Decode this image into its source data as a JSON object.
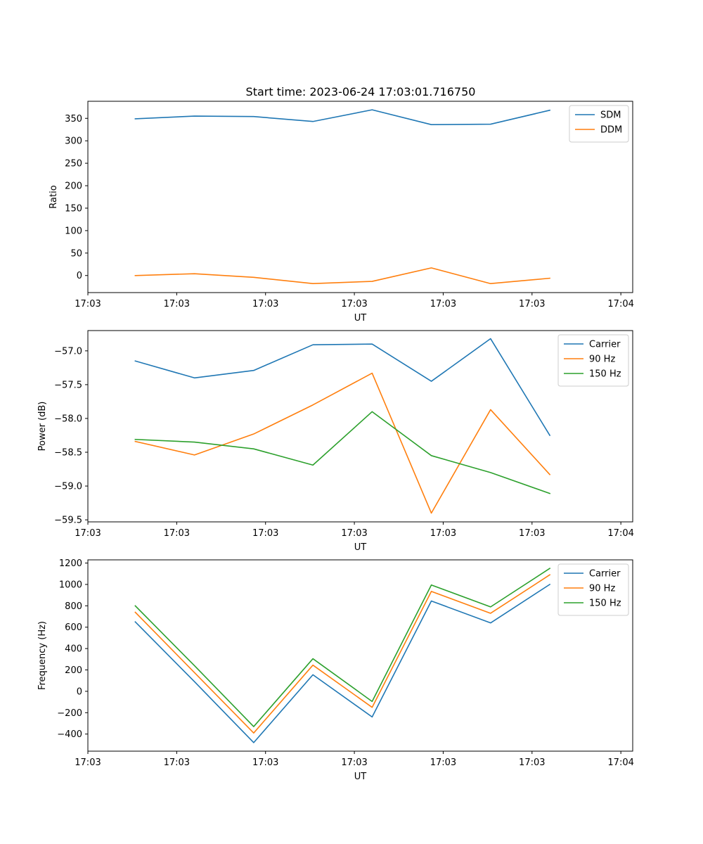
{
  "figure": {
    "title": "Start time: 2023-06-24 17:03:01.716750"
  },
  "chart_data": [
    {
      "type": "line",
      "title": "Start time: 2023-06-24 17:03:01.716750",
      "xlabel": "UT",
      "ylabel": "Ratio",
      "x": [
        1,
        2,
        3,
        4,
        5,
        6,
        7,
        8
      ],
      "xlim": [
        0.2,
        9.4
      ],
      "xticks": [
        0.2,
        1.7,
        3.2,
        4.7,
        6.2,
        7.7,
        9.2
      ],
      "xticklabels": [
        "17:03",
        "17:03",
        "17:03",
        "17:03",
        "17:03",
        "17:03",
        "17:04"
      ],
      "ylim": [
        -38,
        388
      ],
      "yticks": [
        0,
        50,
        100,
        150,
        200,
        250,
        300,
        350
      ],
      "yticklabels": [
        "0",
        "50",
        "100",
        "150",
        "200",
        "250",
        "300",
        "350"
      ],
      "legend": "top-right",
      "grid": false,
      "series": [
        {
          "name": "SDM",
          "color": "#1f77b4",
          "values": [
            349,
            355,
            354,
            343,
            369,
            336,
            337,
            368
          ]
        },
        {
          "name": "DDM",
          "color": "#ff7f0e",
          "values": [
            0,
            4,
            -4,
            -18,
            -13,
            17,
            -18,
            -6
          ]
        }
      ]
    },
    {
      "type": "line",
      "title": "",
      "xlabel": "UT",
      "ylabel": "Power (dB)",
      "x": [
        1,
        2,
        3,
        4,
        5,
        6,
        7,
        8
      ],
      "xlim": [
        0.2,
        9.4
      ],
      "xticks": [
        0.2,
        1.7,
        3.2,
        4.7,
        6.2,
        7.7,
        9.2
      ],
      "xticklabels": [
        "17:03",
        "17:03",
        "17:03",
        "17:03",
        "17:03",
        "17:03",
        "17:04"
      ],
      "ylim": [
        -59.53,
        -56.7
      ],
      "yticks": [
        -59.5,
        -59.0,
        -58.5,
        -58.0,
        -57.5,
        -57.0
      ],
      "yticklabels": [
        "−59.5",
        "−59.0",
        "−58.5",
        "−58.0",
        "−57.5",
        "−57.0"
      ],
      "legend": "top-right",
      "grid": false,
      "series": [
        {
          "name": "Carrier",
          "color": "#1f77b4",
          "values": [
            -57.15,
            -57.4,
            -57.29,
            -56.91,
            -56.9,
            -57.45,
            -56.82,
            -58.25
          ]
        },
        {
          "name": "90 Hz",
          "color": "#ff7f0e",
          "values": [
            -58.34,
            -58.54,
            -58.23,
            -57.8,
            -57.33,
            -59.4,
            -57.87,
            -58.83
          ]
        },
        {
          "name": "150 Hz",
          "color": "#2ca02c",
          "values": [
            -58.31,
            -58.35,
            -58.45,
            -58.69,
            -57.9,
            -58.55,
            -58.8,
            -59.11
          ]
        }
      ]
    },
    {
      "type": "line",
      "title": "",
      "xlabel": "UT",
      "ylabel": "Frequency (Hz)",
      "x": [
        1,
        2,
        3,
        4,
        5,
        6,
        7,
        8
      ],
      "xlim": [
        0.2,
        9.4
      ],
      "xticks": [
        0.2,
        1.7,
        3.2,
        4.7,
        6.2,
        7.7,
        9.2
      ],
      "xticklabels": [
        "17:03",
        "17:03",
        "17:03",
        "17:03",
        "17:03",
        "17:03",
        "17:04"
      ],
      "ylim": [
        -560,
        1230
      ],
      "yticks": [
        -400,
        -200,
        0,
        200,
        400,
        600,
        800,
        1000,
        1200
      ],
      "yticklabels": [
        "−400",
        "−200",
        "0",
        "200",
        "400",
        "600",
        "800",
        "1000",
        "1200"
      ],
      "legend": "top-right",
      "grid": false,
      "series": [
        {
          "name": "Carrier",
          "color": "#1f77b4",
          "values": [
            650,
            90,
            -480,
            155,
            -240,
            845,
            640,
            1000
          ]
        },
        {
          "name": "90 Hz",
          "color": "#ff7f0e",
          "values": [
            740,
            175,
            -390,
            245,
            -150,
            935,
            730,
            1090
          ]
        },
        {
          "name": "150 Hz",
          "color": "#2ca02c",
          "values": [
            800,
            240,
            -330,
            305,
            -95,
            995,
            790,
            1150
          ]
        }
      ]
    }
  ]
}
